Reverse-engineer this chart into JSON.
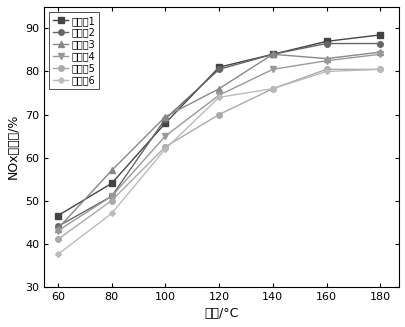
{
  "x": [
    60,
    80,
    100,
    120,
    140,
    160,
    180
  ],
  "series": [
    {
      "label": "实施例1",
      "values": [
        46.5,
        54,
        68,
        81,
        84,
        87,
        88.5
      ],
      "color": "#444444",
      "marker": "s",
      "markersize": 4
    },
    {
      "label": "实施例2",
      "values": [
        44,
        51,
        69,
        80.5,
        84,
        86.5,
        86.5
      ],
      "color": "#666666",
      "marker": "o",
      "markersize": 4
    },
    {
      "label": "实施例3",
      "values": [
        43.5,
        57,
        69.5,
        76,
        84,
        83,
        84.5
      ],
      "color": "#888888",
      "marker": "^",
      "markersize": 4
    },
    {
      "label": "实施例4",
      "values": [
        43,
        51,
        65,
        74.5,
        80.5,
        82.5,
        84
      ],
      "color": "#999999",
      "marker": "v",
      "markersize": 4
    },
    {
      "label": "实施例5",
      "values": [
        41,
        50,
        62.5,
        70,
        76,
        80.5,
        80.5
      ],
      "color": "#aaaaaa",
      "marker": "o",
      "markersize": 4
    },
    {
      "label": "实施例6",
      "values": [
        37.5,
        47,
        62,
        74,
        76,
        80,
        80.5
      ],
      "color": "#bbbbbb",
      "marker": "D",
      "markersize": 3
    }
  ],
  "xlabel": "温度/°C",
  "ylabel": "NOx转化率/%",
  "xlim": [
    55,
    187
  ],
  "ylim": [
    30,
    95
  ],
  "yticks": [
    30,
    40,
    50,
    60,
    70,
    80,
    90
  ],
  "xticks": [
    60,
    80,
    100,
    120,
    140,
    160,
    180
  ],
  "background_color": "#ffffff",
  "linewidth": 1.0,
  "legend_fontsize": 7,
  "axis_fontsize": 9,
  "tick_fontsize": 8
}
